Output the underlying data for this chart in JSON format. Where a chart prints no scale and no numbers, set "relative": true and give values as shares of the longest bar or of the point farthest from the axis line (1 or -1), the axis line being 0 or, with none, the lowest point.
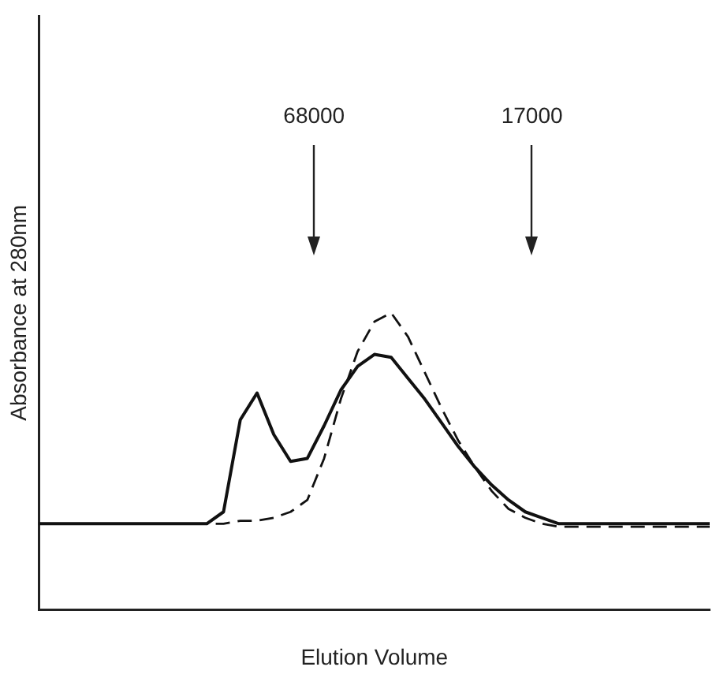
{
  "chart_data": {
    "type": "line",
    "xlabel": "Elution Volume",
    "ylabel": "Absorbance at 280nm",
    "relative": true,
    "legend": false,
    "grid": false,
    "marker": "none",
    "categories": [
      null,
      null,
      null,
      null,
      null,
      null,
      null,
      null,
      null,
      null,
      null,
      null,
      null,
      null,
      null,
      null,
      null,
      null,
      null,
      null,
      null,
      null,
      null,
      null,
      null,
      null,
      null,
      null,
      null,
      null,
      null,
      null,
      null,
      null,
      null,
      null,
      null,
      null,
      null,
      null,
      null
    ],
    "series": [
      {
        "color": "#111111",
        "line_style": "solid",
        "values": [
          0.29,
          0.29,
          0.29,
          0.29,
          0.29,
          0.29,
          0.29,
          0.29,
          0.29,
          0.29,
          0.29,
          0.33,
          0.64,
          0.73,
          0.59,
          0.5,
          0.51,
          0.62,
          0.74,
          0.82,
          0.86,
          0.85,
          0.78,
          0.71,
          0.63,
          0.55,
          0.48,
          0.42,
          0.37,
          0.33,
          0.31,
          0.29,
          0.29,
          0.29,
          0.29,
          0.29,
          0.29,
          0.29,
          0.29,
          0.29,
          0.29
        ]
      },
      {
        "color": "#111111",
        "line_style": "dashed",
        "values": [
          0.29,
          0.29,
          0.29,
          0.29,
          0.29,
          0.29,
          0.29,
          0.29,
          0.29,
          0.29,
          0.29,
          0.29,
          0.3,
          0.3,
          0.31,
          0.33,
          0.37,
          0.51,
          0.71,
          0.87,
          0.97,
          1.0,
          0.92,
          0.8,
          0.68,
          0.57,
          0.48,
          0.4,
          0.34,
          0.31,
          0.29,
          0.28,
          0.28,
          0.28,
          0.28,
          0.28,
          0.28,
          0.28,
          0.28,
          0.28,
          0.28
        ]
      }
    ],
    "annotations": [
      "68000",
      "17000"
    ]
  }
}
